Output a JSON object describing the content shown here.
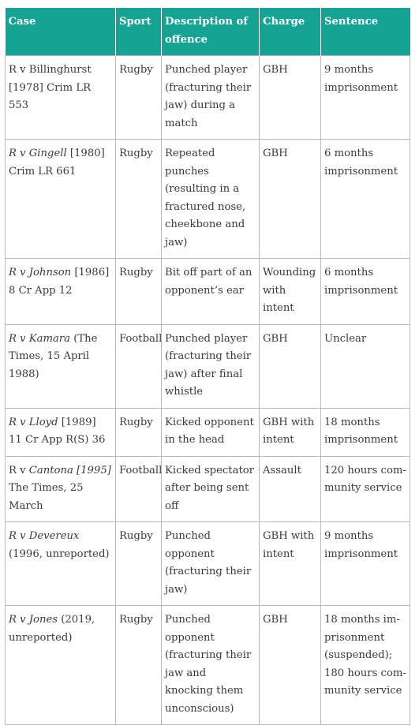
{
  "headers": [
    "Case",
    "Sport",
    "Description of offence",
    "Charge",
    "Sentence"
  ],
  "rows": [
    {
      "case_pre": "R v Billinghurst [1978] Crim LR 553",
      "case_italic": "",
      "case_post": "",
      "sport": "Rugby",
      "description": "Punched player (fracturing their jaw) during a match",
      "charge": "GBH",
      "sentence": "9 months imprisonment"
    },
    {
      "case_pre": "",
      "case_italic": "R v Gingell",
      "case_post": " [1980] Crim LR 661",
      "sport": "Rugby",
      "description": "Repeated punches (resulting in a frac­tured nose, cheek­bone and jaw)",
      "charge": "GBH",
      "sentence": "6 months imprisonment"
    },
    {
      "case_pre": "",
      "case_italic": "R v Johnson",
      "case_post": " [1986] 8 Cr App 12",
      "sport": "Rugby",
      "description": "Bit off part of an opponent’s ear",
      "charge": "Wounding with intent",
      "sentence": "6 months imprisonment"
    },
    {
      "case_pre": "",
      "case_italic": "R v Kamara",
      "case_post": " (The Times, 15 April 1988)",
      "sport": "Football",
      "description": "Punched player (fracturing their jaw) after final whistle",
      "charge": "GBH",
      "sentence": "Unclear"
    },
    {
      "case_pre": "",
      "case_italic": "R v Lloyd",
      "case_post": " [1989] 11 Cr App R(S) 36",
      "sport": "Rugby",
      "description": "Kicked opponent in the head",
      "charge": "GBH with intent",
      "sentence": "18 months imprisonment"
    },
    {
      "case_pre": "R v ",
      "case_italic": "Cantona [1995]",
      "case_post": " The Times, 25 March",
      "sport": "Football",
      "description": "Kicked spectator after being sent off",
      "charge": "Assault",
      "sentence": "120 hours com­munity service"
    },
    {
      "case_pre": "",
      "case_italic": "R v Devereux",
      "case_post": " (1996, unreported)",
      "sport": "Rugby",
      "description": "Punched opponent (fracturing their jaw)",
      "charge": "GBH with intent",
      "sentence": "9 months imprisonment"
    },
    {
      "case_pre": "",
      "case_italic": "R v Jones",
      "case_post": " (2019, unreported)",
      "sport": "Rugby",
      "description": "Punched opponent (fracturing their jaw and knocking them unconscious)",
      "charge": "GBH",
      "sentence": "18 months im­prisonment (suspended); 180 hours com­munity service"
    }
  ]
}
